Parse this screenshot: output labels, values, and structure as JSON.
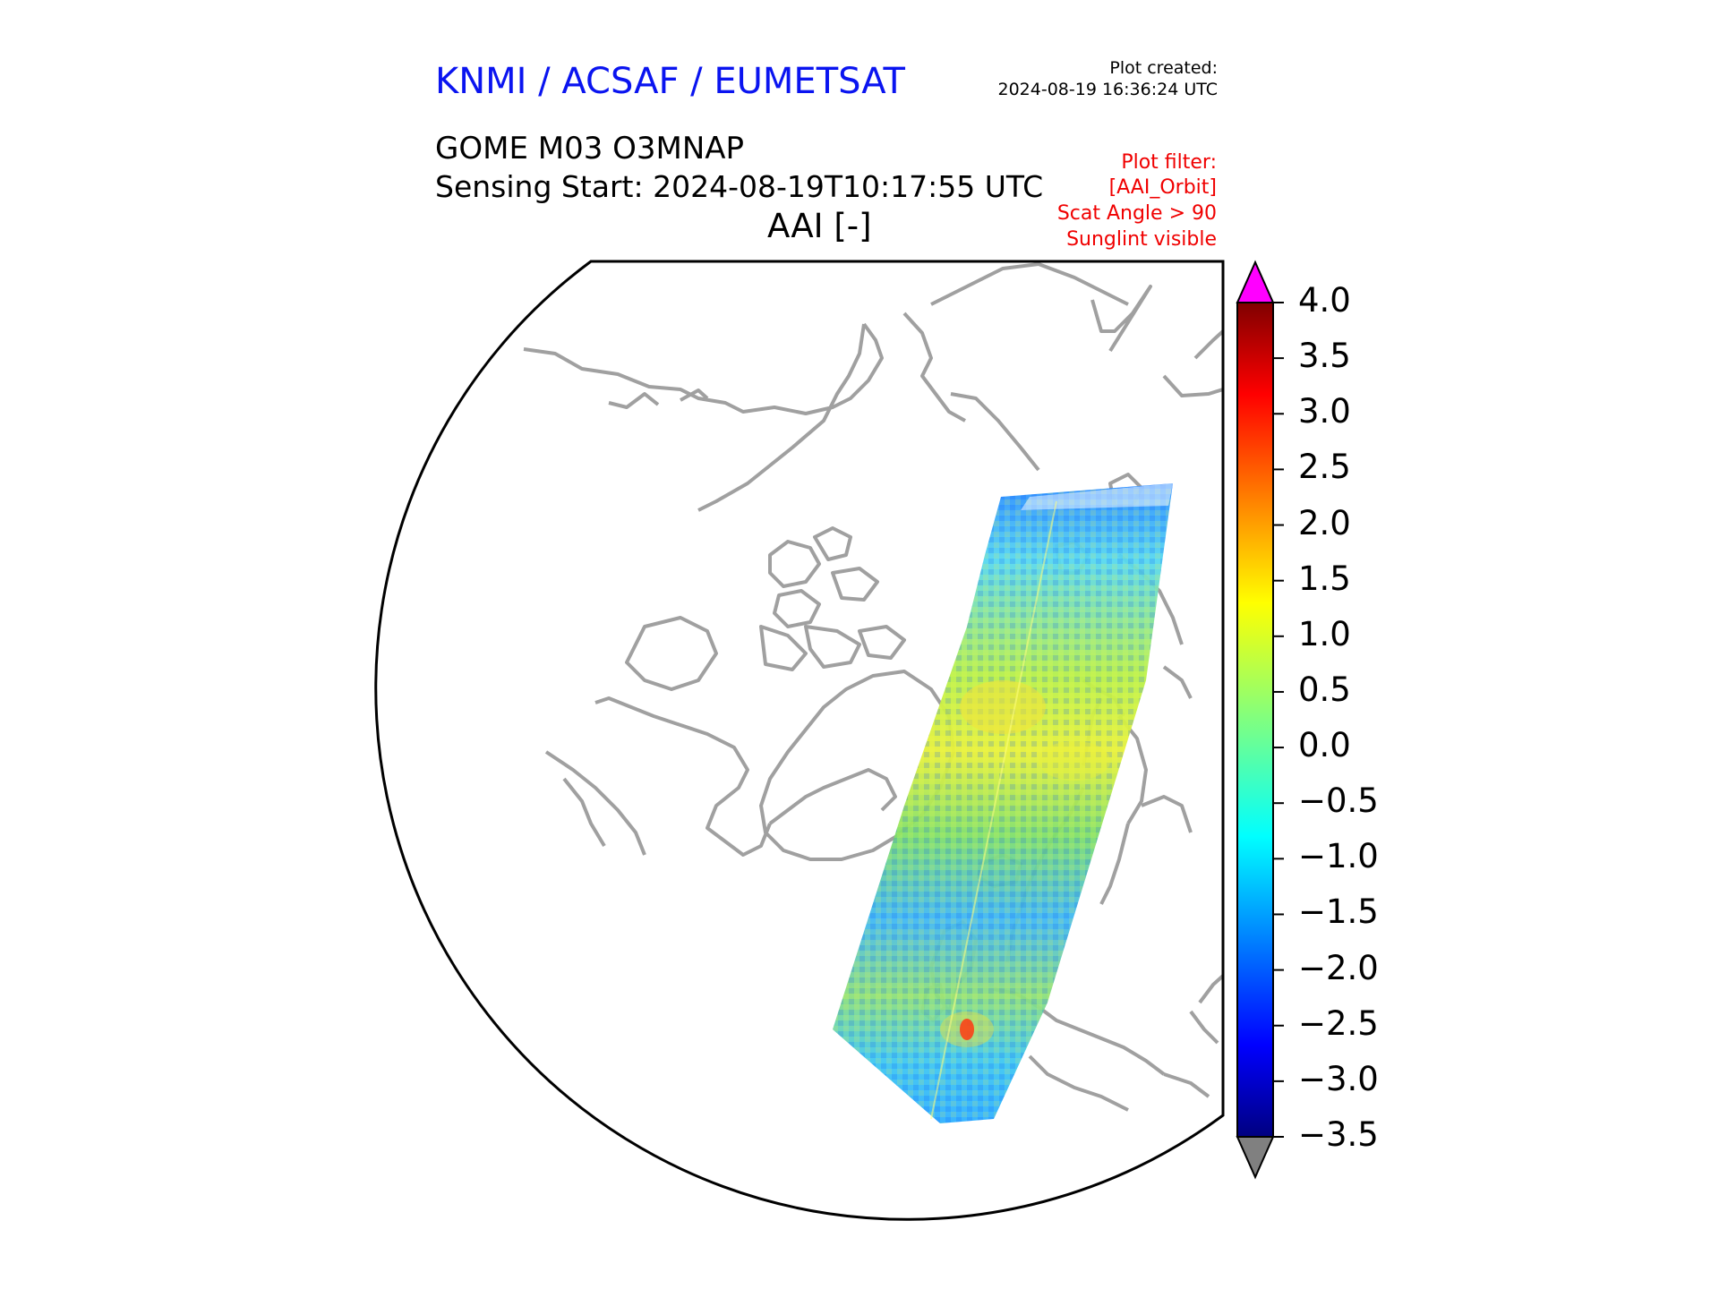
{
  "header": {
    "org": "KNMI / ACSAF / EUMETSAT",
    "created_label": "Plot created:",
    "created_value": "2024-08-19 16:36:24 UTC",
    "product": "GOME M03 O3MNAP",
    "sensing_start": "Sensing Start: 2024-08-19T10:17:55 UTC",
    "variable": "AAI [-]"
  },
  "filter": {
    "label": "Plot filter:",
    "name": "[AAI_Orbit]",
    "scat": "Scat Angle > 90",
    "glint": "Sunglint visible"
  },
  "colorbar": {
    "ticks": [
      "4.0",
      "3.5",
      "3.0",
      "2.5",
      "2.0",
      "1.5",
      "1.0",
      "0.5",
      "0.0",
      "−0.5",
      "−1.0",
      "−1.5",
      "−2.0",
      "−2.5",
      "−3.0",
      "−3.5"
    ],
    "min": -3.5,
    "max": 4.0,
    "colormap": "jet",
    "over_color": "#ff00ff",
    "under_color": "#808080"
  },
  "map": {
    "projection": "north-polar-stereographic",
    "coastline_color": "#a0a0a0",
    "boundary_color": "#000000"
  }
}
